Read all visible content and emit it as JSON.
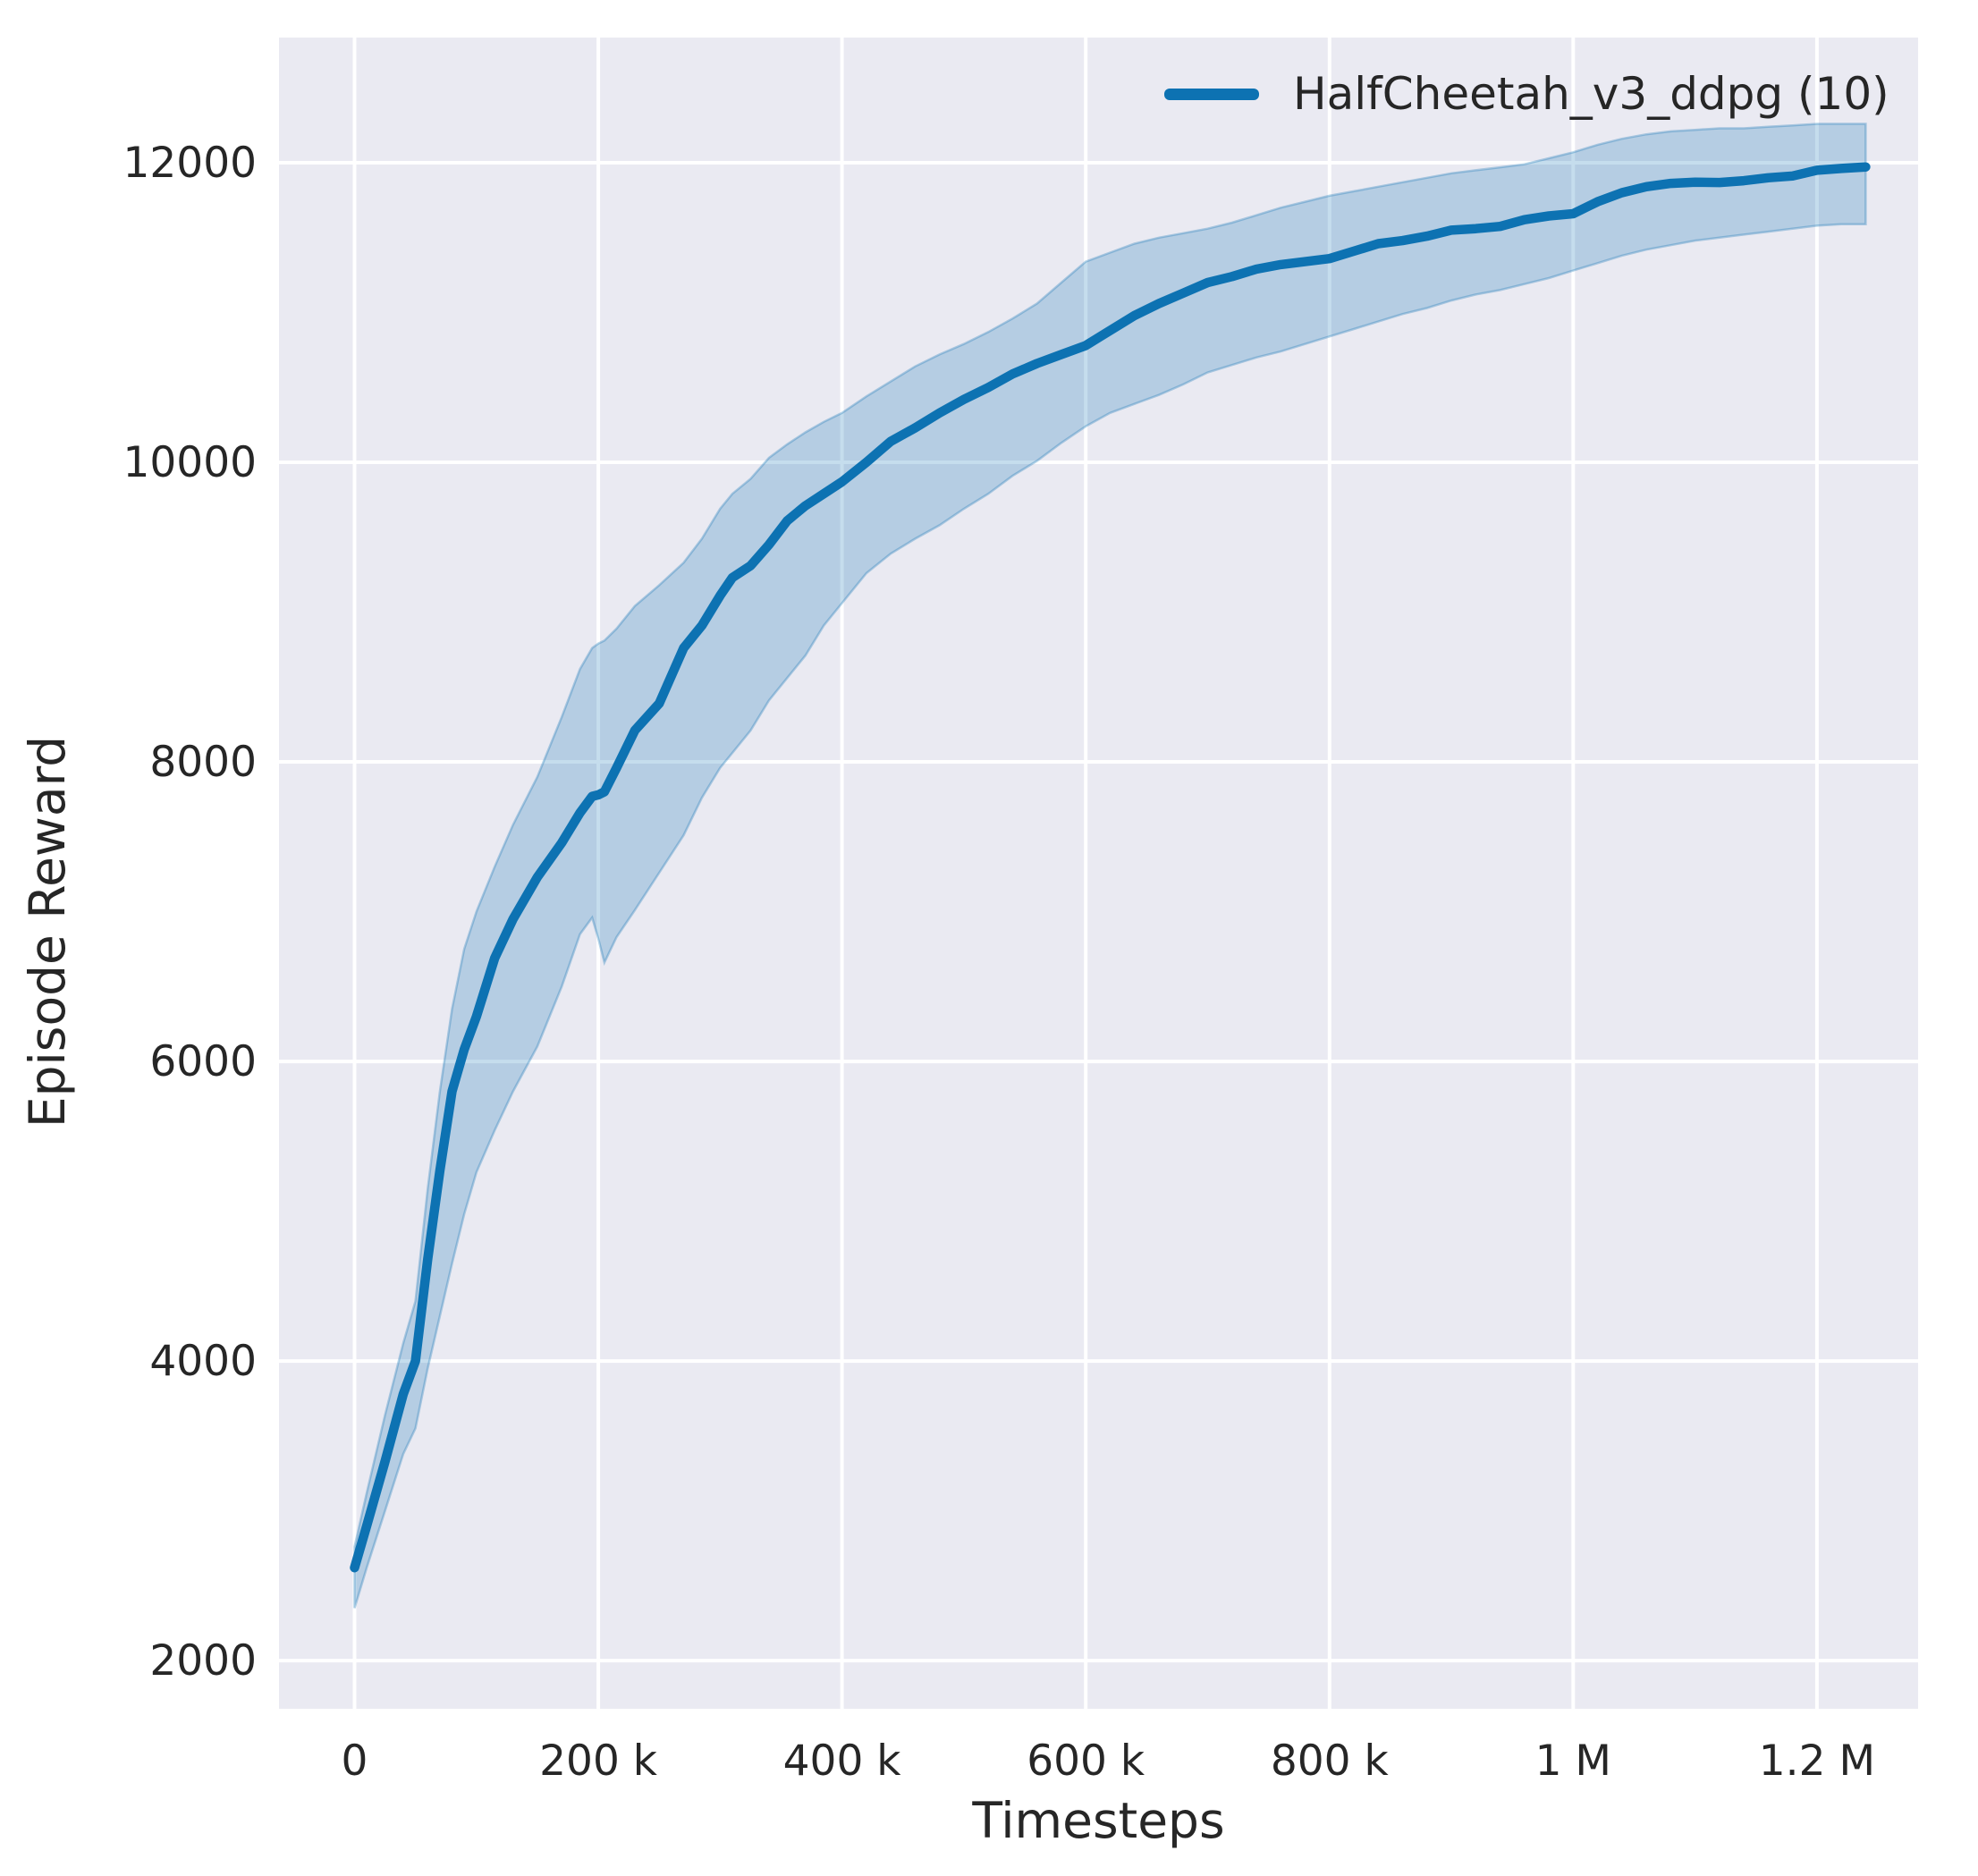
{
  "figure": {
    "background": "#ffffff",
    "plot_background": "#eaeaf2",
    "grid_color": "#ffffff",
    "text_color": "#262626"
  },
  "chart_data": {
    "type": "line",
    "title": "",
    "xlabel": "Timesteps",
    "ylabel": "Episode Reward",
    "grid": true,
    "legend": {
      "position": "upper right",
      "frame": false,
      "entries": [
        {
          "label": "HalfCheetah_v3_ddpg (10)",
          "color": "#0d72b2"
        }
      ]
    },
    "xlim": [
      -62000,
      1283000
    ],
    "ylim": [
      1678,
      12836
    ],
    "x_ticks": [
      {
        "v": 0,
        "label": "0"
      },
      {
        "v": 200000,
        "label": "200 k"
      },
      {
        "v": 400000,
        "label": "400 k"
      },
      {
        "v": 600000,
        "label": "600 k"
      },
      {
        "v": 800000,
        "label": "800 k"
      },
      {
        "v": 1000000,
        "label": "1 M"
      },
      {
        "v": 1200000,
        "label": "1.2 M"
      }
    ],
    "y_ticks": [
      {
        "v": 2000,
        "label": "2000"
      },
      {
        "v": 4000,
        "label": "4000"
      },
      {
        "v": 6000,
        "label": "6000"
      },
      {
        "v": 8000,
        "label": "8000"
      },
      {
        "v": 10000,
        "label": "10000"
      },
      {
        "v": 12000,
        "label": "12000"
      }
    ],
    "series": [
      {
        "name": "HalfCheetah_v3_ddpg (10)",
        "color": "#0d72b2",
        "band_fill": "rgba(13,114,178,0.24)",
        "band_edge": "rgba(13,114,178,0.30)",
        "points_format": [
          "timesteps",
          "mean_reward",
          "band_low",
          "band_high"
        ],
        "points": [
          [
            0,
            2620,
            2350,
            2760
          ],
          [
            10000,
            2900,
            2620,
            3120
          ],
          [
            25000,
            3330,
            3000,
            3640
          ],
          [
            40000,
            3780,
            3380,
            4120
          ],
          [
            50000,
            4000,
            3550,
            4400
          ],
          [
            60000,
            4680,
            3950,
            5150
          ],
          [
            70000,
            5270,
            4300,
            5800
          ],
          [
            80000,
            5800,
            4650,
            6350
          ],
          [
            90000,
            6080,
            4980,
            6750
          ],
          [
            100000,
            6300,
            5260,
            7000
          ],
          [
            115000,
            6690,
            5540,
            7300
          ],
          [
            130000,
            6950,
            5800,
            7580
          ],
          [
            150000,
            7230,
            6100,
            7900
          ],
          [
            170000,
            7460,
            6500,
            8300
          ],
          [
            185000,
            7660,
            6850,
            8620
          ],
          [
            195000,
            7770,
            6960,
            8760
          ],
          [
            200000,
            7780,
            6820,
            8790
          ],
          [
            205000,
            7800,
            6660,
            8810
          ],
          [
            215000,
            7960,
            6830,
            8890
          ],
          [
            230000,
            8210,
            7010,
            9040
          ],
          [
            250000,
            8390,
            7260,
            9180
          ],
          [
            270000,
            8760,
            7510,
            9330
          ],
          [
            285000,
            8910,
            7760,
            9490
          ],
          [
            300000,
            9110,
            7960,
            9690
          ],
          [
            310000,
            9230,
            8060,
            9790
          ],
          [
            325000,
            9310,
            8210,
            9890
          ],
          [
            340000,
            9450,
            8410,
            10030
          ],
          [
            355000,
            9610,
            8560,
            10120
          ],
          [
            370000,
            9710,
            8710,
            10200
          ],
          [
            385000,
            9790,
            8910,
            10270
          ],
          [
            400000,
            9870,
            9060,
            10330
          ],
          [
            420000,
            10000,
            9260,
            10440
          ],
          [
            440000,
            10140,
            9390,
            10540
          ],
          [
            460000,
            10230,
            9490,
            10640
          ],
          [
            480000,
            10330,
            9580,
            10720
          ],
          [
            500000,
            10420,
            9690,
            10790
          ],
          [
            520000,
            10500,
            9790,
            10870
          ],
          [
            540000,
            10590,
            9910,
            10960
          ],
          [
            560000,
            10660,
            10010,
            11060
          ],
          [
            580000,
            10720,
            10130,
            11200
          ],
          [
            600000,
            10780,
            10240,
            11340
          ],
          [
            620000,
            10880,
            10330,
            11400
          ],
          [
            640000,
            10980,
            10390,
            11460
          ],
          [
            660000,
            11060,
            10450,
            11500
          ],
          [
            680000,
            11130,
            10520,
            11530
          ],
          [
            700000,
            11200,
            10600,
            11560
          ],
          [
            720000,
            11240,
            10650,
            11600
          ],
          [
            740000,
            11290,
            10700,
            11650
          ],
          [
            760000,
            11320,
            10740,
            11700
          ],
          [
            780000,
            11340,
            10790,
            11740
          ],
          [
            800000,
            11360,
            10840,
            11780
          ],
          [
            820000,
            11410,
            10890,
            11810
          ],
          [
            840000,
            11460,
            10940,
            11840
          ],
          [
            860000,
            11480,
            10990,
            11870
          ],
          [
            880000,
            11510,
            11030,
            11900
          ],
          [
            900000,
            11550,
            11080,
            11930
          ],
          [
            920000,
            11560,
            11120,
            11950
          ],
          [
            940000,
            11575,
            11150,
            11970
          ],
          [
            960000,
            11620,
            11190,
            11990
          ],
          [
            980000,
            11645,
            11230,
            12030
          ],
          [
            1000000,
            11660,
            11280,
            12070
          ],
          [
            1020000,
            11740,
            11330,
            12120
          ],
          [
            1040000,
            11800,
            11380,
            12160
          ],
          [
            1060000,
            11840,
            11420,
            12190
          ],
          [
            1080000,
            11862,
            11450,
            12210
          ],
          [
            1100000,
            11870,
            11480,
            12220
          ],
          [
            1120000,
            11868,
            11500,
            12230
          ],
          [
            1140000,
            11880,
            11520,
            12230
          ],
          [
            1160000,
            11900,
            11540,
            12240
          ],
          [
            1180000,
            11912,
            11560,
            12250
          ],
          [
            1200000,
            11950,
            11580,
            12260
          ],
          [
            1220000,
            11962,
            11590,
            12260
          ],
          [
            1240000,
            11972,
            11590,
            12260
          ]
        ]
      }
    ]
  }
}
